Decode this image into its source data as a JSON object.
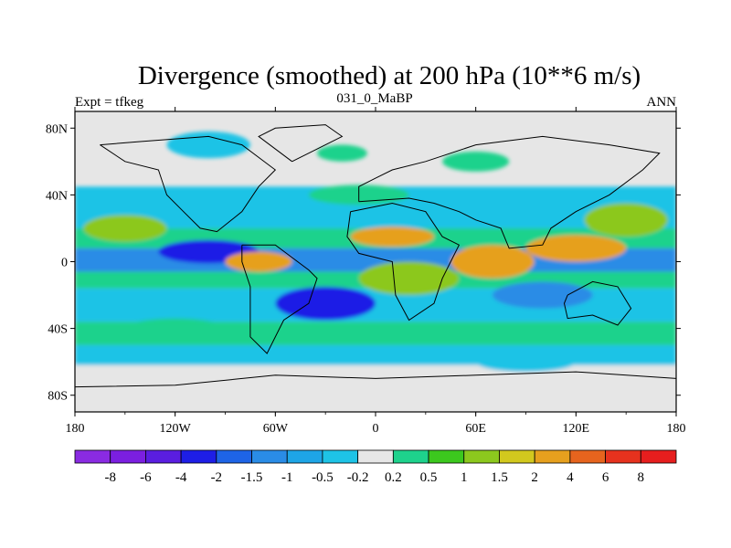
{
  "chart_data": {
    "type": "heatmap",
    "title": "Divergence (smoothed) at 200 hPa (10**6 m/s)",
    "subtitle_left": "Expt = tfkeg",
    "subtitle_center": "031_0_MaBP",
    "subtitle_right": "ANN",
    "x_ticks": [
      {
        "value": -180,
        "label": "180"
      },
      {
        "value": -120,
        "label": "120W"
      },
      {
        "value": -60,
        "label": "60W"
      },
      {
        "value": 0,
        "label": "0"
      },
      {
        "value": 60,
        "label": "60E"
      },
      {
        "value": 120,
        "label": "120E"
      },
      {
        "value": 180,
        "label": "180"
      }
    ],
    "y_ticks": [
      {
        "value": 80,
        "label": "80N"
      },
      {
        "value": 40,
        "label": "40N"
      },
      {
        "value": 0,
        "label": "0"
      },
      {
        "value": -40,
        "label": "40S"
      },
      {
        "value": -80,
        "label": "80S"
      }
    ],
    "xlim": [
      -180,
      180
    ],
    "ylim": [
      -90,
      90
    ],
    "colorbar": {
      "levels": [
        "-8",
        "-6",
        "-4",
        "-2",
        "-1.5",
        "-1",
        "-0.5",
        "-0.2",
        "0.2",
        "0.5",
        "1",
        "1.5",
        "2",
        "4",
        "6",
        "8"
      ],
      "colors": [
        "#8a2be2",
        "#7b1fe0",
        "#5a1ee0",
        "#1e1ee6",
        "#1e64e6",
        "#2a8ce6",
        "#1ea5e6",
        "#1ec3e6",
        "#e6e6e6",
        "#1ed28c",
        "#3cc81e",
        "#8cc81e",
        "#d2c81e",
        "#e6a01e",
        "#e6641e",
        "#e6321e",
        "#e61e1e"
      ]
    },
    "field_colors": {
      "neg_strong": "#1e1ee6",
      "neg_mid": "#2a8ce6",
      "neg_weak": "#1ec3e6",
      "neutral": "#e6e6e6",
      "pos_weak": "#1ed28c",
      "pos_mid": "#8cc81e",
      "pos_strong": "#e6a01e"
    }
  }
}
